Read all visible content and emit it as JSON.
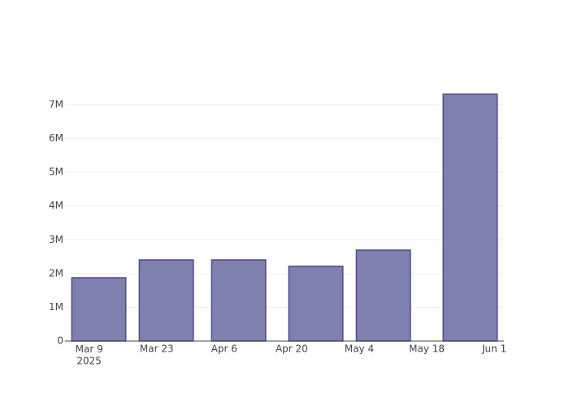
{
  "chart_data": {
    "type": "bar",
    "x": [
      "2025-03-11",
      "2025-03-25",
      "2025-04-09",
      "2025-04-25",
      "2025-05-09",
      "2025-05-27"
    ],
    "values": [
      1876000,
      2405000,
      2405000,
      2213000,
      2694000,
      7313000
    ],
    "color": "#7f7fb0",
    "edgecolor": "#4b4b85",
    "xlim": [
      "2025-03-04",
      "2025-06-03"
    ],
    "xticks": [
      {
        "value": "2025-03-09",
        "label": "Mar 9\n2025"
      },
      {
        "value": "2025-03-23",
        "label": "Mar 23"
      },
      {
        "value": "2025-04-06",
        "label": "Apr 6"
      },
      {
        "value": "2025-04-20",
        "label": "Apr 20"
      },
      {
        "value": "2025-05-04",
        "label": "May 4"
      },
      {
        "value": "2025-05-18",
        "label": "May 18"
      },
      {
        "value": "2025-06-01",
        "label": "Jun 1"
      }
    ],
    "ylim": [
      0,
      7698000
    ],
    "yticks": [
      {
        "value": 0,
        "label": "0"
      },
      {
        "value": 1000000,
        "label": "1M"
      },
      {
        "value": 2000000,
        "label": "2M"
      },
      {
        "value": 3000000,
        "label": "3M"
      },
      {
        "value": 4000000,
        "label": "4M"
      },
      {
        "value": 5000000,
        "label": "5M"
      },
      {
        "value": 6000000,
        "label": "6M"
      },
      {
        "value": 7000000,
        "label": "7M"
      }
    ],
    "grid": true
  }
}
